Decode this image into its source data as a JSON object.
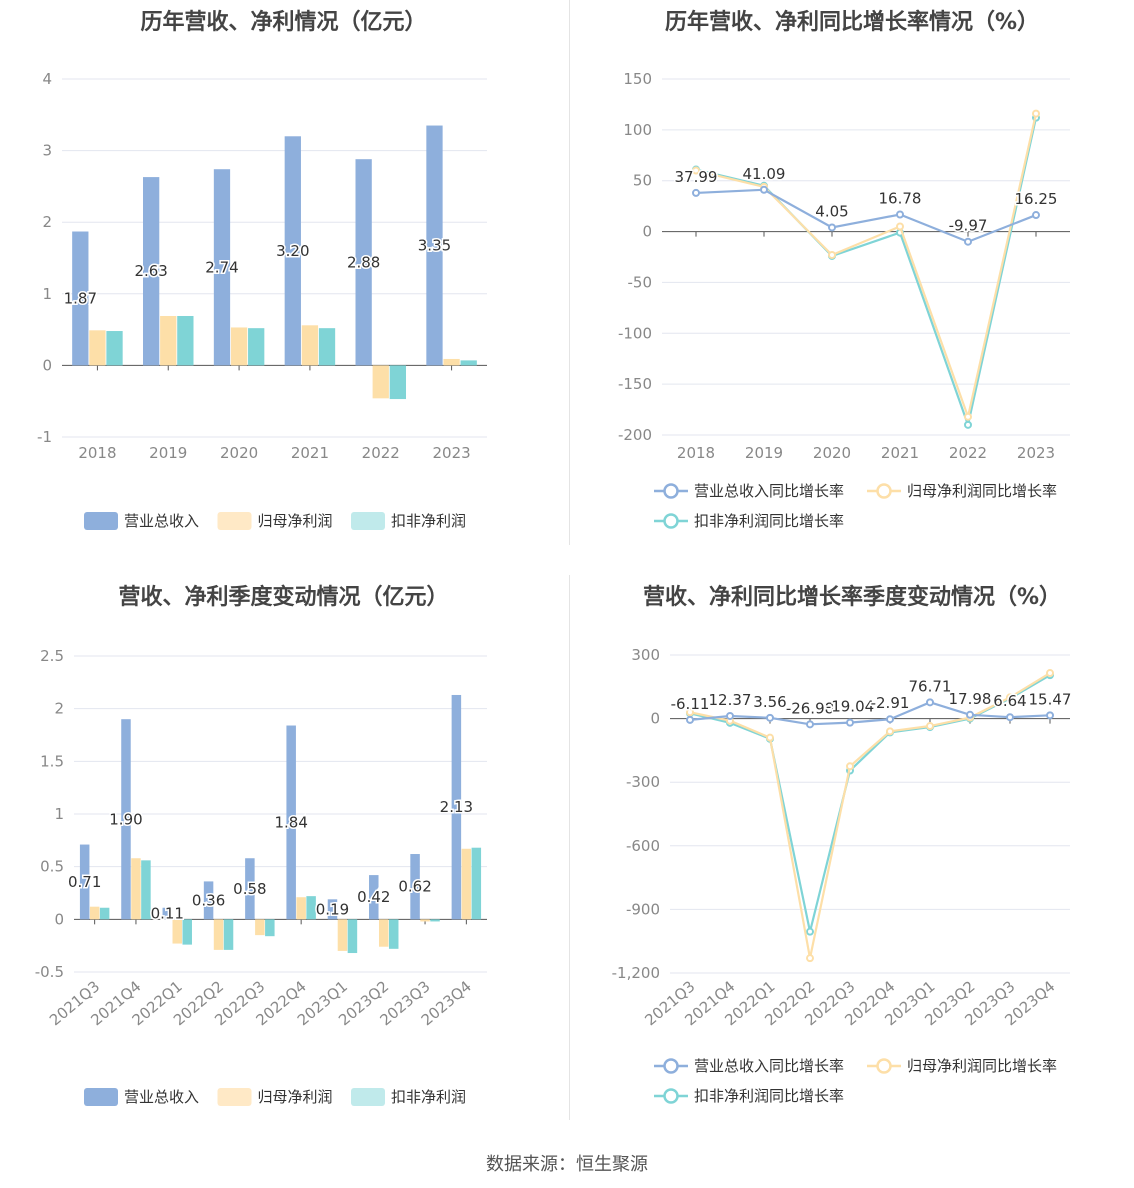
{
  "colors": {
    "revenue": "#8eafdc",
    "net_profit": "#fddfa8",
    "deducted": "#7fd4d6",
    "revenue_legend": "#8eafdc",
    "net_profit_legend": "#ffe9c6",
    "deducted_legend": "#c0eaeb",
    "grid": "#e3e6ef",
    "axis": "#555555",
    "tick_text": "#888888",
    "label_text": "#333333"
  },
  "legend": {
    "bars": [
      "营业总收入",
      "归母净利润",
      "扣非净利润"
    ],
    "lines": [
      "营业总收入同比增长率",
      "归母净利润同比增长率",
      "扣非净利润同比增长率"
    ]
  },
  "source": "数据来源：恒生聚源",
  "chart_data": [
    {
      "id": "annual_amount",
      "type": "bar",
      "title": "历年营收、净利情况（亿元）",
      "categories": [
        "2018",
        "2019",
        "2020",
        "2021",
        "2022",
        "2023"
      ],
      "ylim": [
        -1,
        4
      ],
      "yticks": [
        -1,
        0,
        1,
        2,
        3,
        4
      ],
      "grid": true,
      "legend_position": "bottom",
      "series": [
        {
          "name": "营业总收入",
          "values": [
            1.87,
            2.63,
            2.74,
            3.2,
            2.88,
            3.35
          ],
          "labels": [
            "1.87",
            "2.63",
            "2.74",
            "3.20",
            "2.88",
            "3.35"
          ]
        },
        {
          "name": "归母净利润",
          "values": [
            0.49,
            0.69,
            0.53,
            0.56,
            -0.46,
            0.09
          ]
        },
        {
          "name": "扣非净利润",
          "values": [
            0.48,
            0.69,
            0.52,
            0.52,
            -0.47,
            0.07
          ]
        }
      ]
    },
    {
      "id": "annual_growth",
      "type": "line",
      "title": "历年营收、净利同比增长率情况（%）",
      "categories": [
        "2018",
        "2019",
        "2020",
        "2021",
        "2022",
        "2023"
      ],
      "ylim": [
        -200,
        150
      ],
      "yticks": [
        -200,
        -150,
        -100,
        -50,
        0,
        50,
        100,
        150
      ],
      "grid": true,
      "legend_position": "bottom",
      "series": [
        {
          "name": "营业总收入同比增长率",
          "values": [
            37.99,
            41.09,
            4.05,
            16.78,
            -9.97,
            16.25
          ],
          "labels": [
            "37.99",
            "41.09",
            "4.05",
            "16.78",
            "-9.97",
            "16.25"
          ]
        },
        {
          "name": "归母净利润同比增长率",
          "values": [
            60,
            44,
            -23,
            5,
            -182,
            116
          ]
        },
        {
          "name": "扣非净利润同比增长率",
          "values": [
            61,
            45,
            -24,
            -1,
            -190,
            112
          ]
        }
      ]
    },
    {
      "id": "quarter_amount",
      "type": "bar",
      "title": "营收、净利季度变动情况（亿元）",
      "categories": [
        "2021Q3",
        "2021Q4",
        "2022Q1",
        "2022Q2",
        "2022Q3",
        "2022Q4",
        "2023Q1",
        "2023Q2",
        "2023Q3",
        "2023Q4"
      ],
      "ylim": [
        -0.5,
        2.5
      ],
      "yticks": [
        -0.5,
        0,
        0.5,
        1,
        1.5,
        2,
        2.5
      ],
      "ytick_labels": [
        "-0.5",
        "0",
        "0.5",
        "1",
        "1.5",
        "2",
        "2.5"
      ],
      "grid": true,
      "legend_position": "bottom",
      "series": [
        {
          "name": "营业总收入",
          "values": [
            0.71,
            1.9,
            0.11,
            0.36,
            0.58,
            1.84,
            0.19,
            0.42,
            0.62,
            2.13
          ],
          "labels": [
            "0.71",
            "1.90",
            "0.11",
            "0.36",
            "0.58",
            "1.84",
            "0.19",
            "0.42",
            "0.62",
            "2.13"
          ]
        },
        {
          "name": "归母净利润",
          "values": [
            0.12,
            0.58,
            -0.23,
            -0.29,
            -0.15,
            0.21,
            -0.3,
            -0.26,
            -0.02,
            0.67
          ]
        },
        {
          "name": "扣非净利润",
          "values": [
            0.11,
            0.56,
            -0.24,
            -0.29,
            -0.16,
            0.22,
            -0.32,
            -0.28,
            -0.02,
            0.68
          ]
        }
      ]
    },
    {
      "id": "quarter_growth",
      "type": "line",
      "title": "营收、净利同比增长率季度变动情况（%）",
      "categories": [
        "2021Q3",
        "2021Q4",
        "2022Q1",
        "2022Q2",
        "2022Q3",
        "2022Q4",
        "2023Q1",
        "2023Q2",
        "2023Q3",
        "2023Q4"
      ],
      "ylim": [
        -1200,
        300
      ],
      "yticks": [
        -1200,
        -900,
        -600,
        -300,
        0,
        300
      ],
      "ytick_labels": [
        "-1,200",
        "-900",
        "-600",
        "-300",
        "0",
        "300"
      ],
      "grid": true,
      "legend_position": "bottom",
      "series": [
        {
          "name": "营业总收入同比增长率",
          "values": [
            -6.11,
            12.37,
            3.56,
            -26.98,
            -19.04,
            -2.91,
            76.71,
            17.98,
            6.64,
            15.47
          ],
          "labels": [
            "-6.11",
            "12.37",
            "3.56",
            "-26.98",
            "-19.04",
            "-2.91",
            "76.71",
            "17.98",
            "6.64",
            "15.47"
          ]
        },
        {
          "name": "归母净利润同比增长率",
          "values": [
            30,
            -10,
            -90,
            -1130,
            -225,
            -60,
            -35,
            5,
            100,
            215
          ]
        },
        {
          "name": "扣非净利润同比增长率",
          "values": [
            25,
            -20,
            -95,
            -1005,
            -245,
            -65,
            -40,
            0,
            95,
            205
          ]
        }
      ]
    }
  ]
}
